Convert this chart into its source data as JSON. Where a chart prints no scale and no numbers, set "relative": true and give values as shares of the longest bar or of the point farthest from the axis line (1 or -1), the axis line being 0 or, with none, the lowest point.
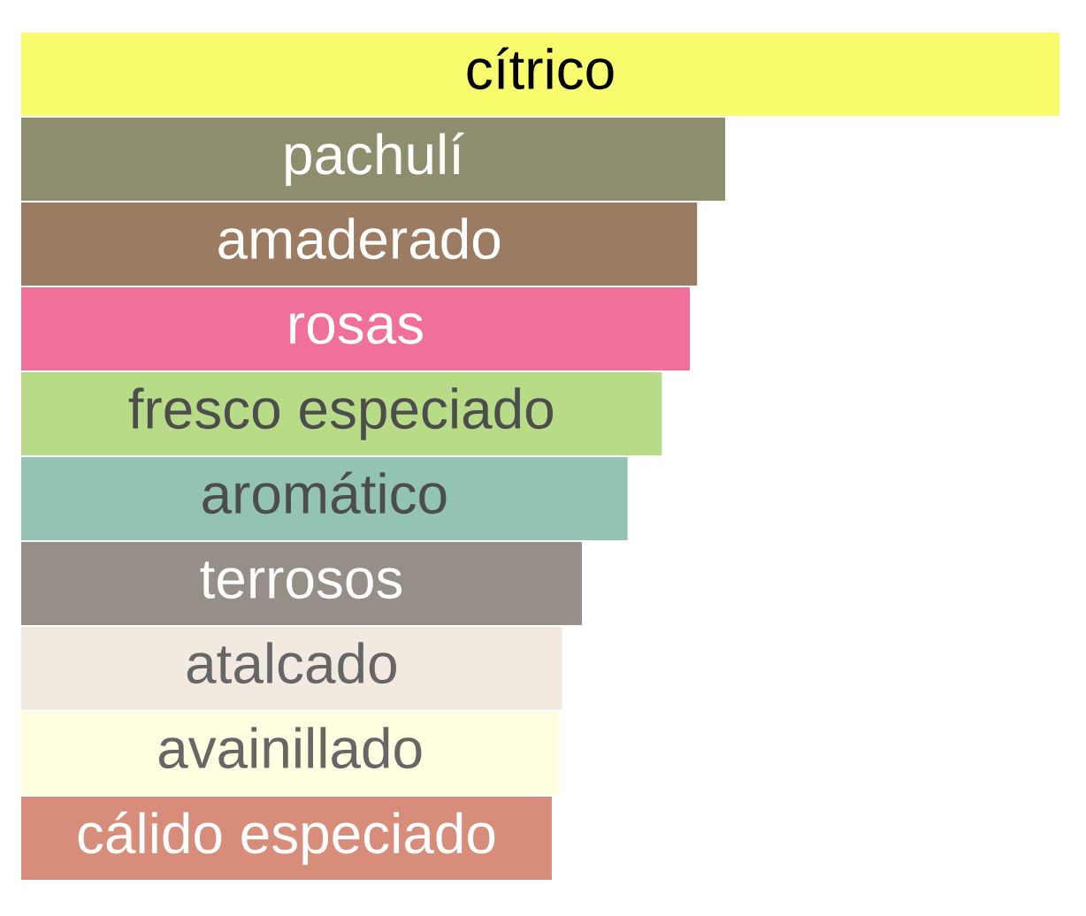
{
  "chart_data": {
    "type": "bar",
    "orientation": "horizontal",
    "relative": true,
    "tick_labels": false,
    "categories": [
      "cítrico",
      "pachulí",
      "amaderado",
      "rosas",
      "fresco especiado",
      "aromático",
      "terrosos",
      "atalcado",
      "avainillado",
      "cálido especiado"
    ],
    "values": [
      1,
      0.678,
      0.651,
      0.644,
      0.617,
      0.584,
      0.54,
      0.521,
      0.518,
      0.511
    ],
    "colors": [
      "#f9fc6c",
      "#8e8e6e",
      "#9b7c62",
      "#f07099",
      "#b7db86",
      "#93c3b4",
      "#968f88",
      "#f2e9e1",
      "#fffee0",
      "#d88c7a"
    ]
  }
}
